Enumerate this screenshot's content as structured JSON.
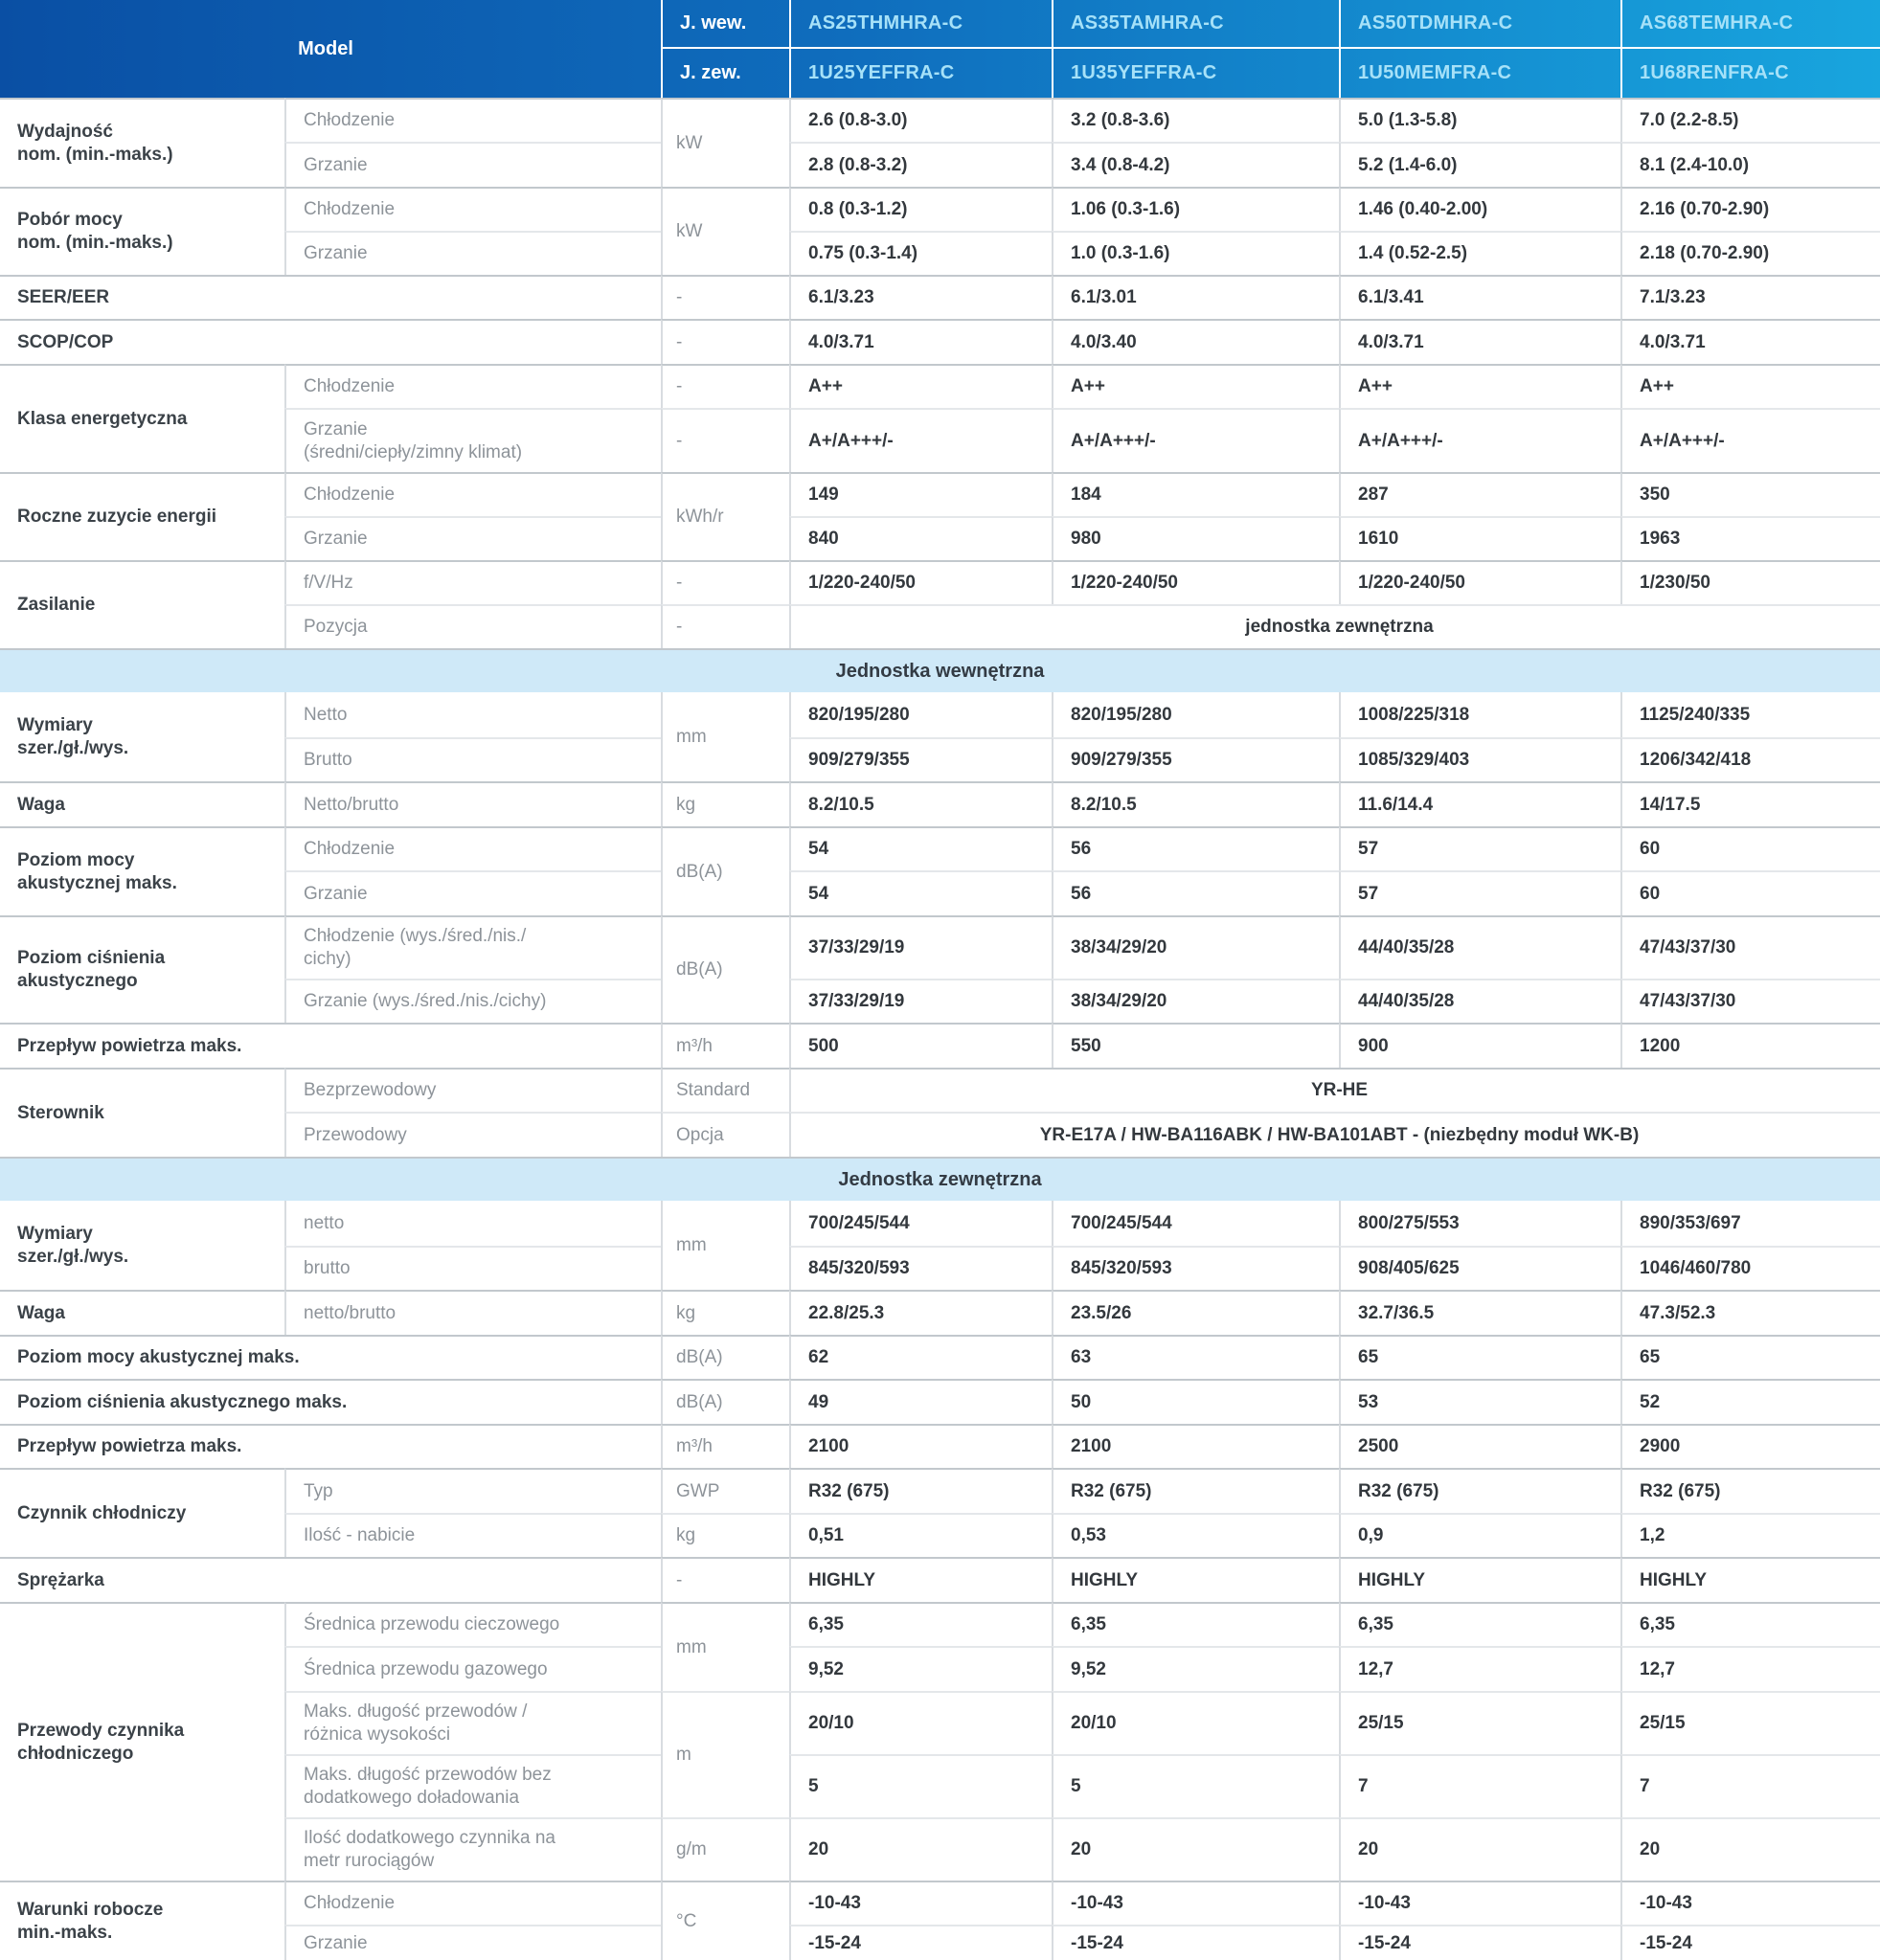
{
  "colors": {
    "header_gradient_start": "#0a4fa4",
    "header_gradient_end": "#18a5de",
    "header_model_text": "#a6e1f8",
    "band_bg": "#cfe9f8"
  },
  "header": {
    "model_label": "Model",
    "row1_label": "J. wew.",
    "row2_label": "J. zew.",
    "row1_models": [
      "AS25THMHRA-C",
      "AS35TAMHRA-C",
      "AS50TDMHRA-C",
      "AS68TEMHRA-C"
    ],
    "row2_models": [
      "1U25YEFFRA-C",
      "1U35YEFFRA-C",
      "1U50MEMFRA-C",
      "1U68RENFRA-C"
    ]
  },
  "bands": {
    "indoor": "Jednostka wewnętrzna",
    "outdoor": "Jednostka zewnętrzna"
  },
  "rows": {
    "wydajnosc": {
      "label": "Wydajność\nnom. (min.-maks.)",
      "sub_cool": "Chłodzenie",
      "sub_heat": "Grzanie",
      "unit": "kW",
      "cool": [
        "2.6 (0.8-3.0)",
        "3.2 (0.8-3.6)",
        "5.0 (1.3-5.8)",
        "7.0 (2.2-8.5)"
      ],
      "heat": [
        "2.8 (0.8-3.2)",
        "3.4 (0.8-4.2)",
        "5.2 (1.4-6.0)",
        "8.1 (2.4-10.0)"
      ]
    },
    "pobor": {
      "label": "Pobór mocy\nnom. (min.-maks.)",
      "sub_cool": "Chłodzenie",
      "sub_heat": "Grzanie",
      "unit": "kW",
      "cool": [
        "0.8 (0.3-1.2)",
        "1.06 (0.3-1.6)",
        "1.46 (0.40-2.00)",
        "2.16 (0.70-2.90)"
      ],
      "heat": [
        "0.75 (0.3-1.4)",
        "1.0 (0.3-1.6)",
        "1.4 (0.52-2.5)",
        "2.18 (0.70-2.90)"
      ]
    },
    "seer": {
      "label": "SEER/EER",
      "unit": "-",
      "values": [
        "6.1/3.23",
        "6.1/3.01",
        "6.1/3.41",
        "7.1/3.23"
      ]
    },
    "scop": {
      "label": "SCOP/COP",
      "unit": "-",
      "values": [
        "4.0/3.71",
        "4.0/3.40",
        "4.0/3.71",
        "4.0/3.71"
      ]
    },
    "klasa": {
      "label": "Klasa energetyczna",
      "sub_cool": "Chłodzenie",
      "sub_heat": "Grzanie\n(średni/ciepły/zimny klimat)",
      "unit_cool": "-",
      "unit_heat": "-",
      "cool": [
        "A++",
        "A++",
        "A++",
        "A++"
      ],
      "heat": [
        "A+/A+++/-",
        "A+/A+++/-",
        "A+/A+++/-",
        "A+/A+++/-"
      ]
    },
    "roczne": {
      "label": "Roczne zuzycie energii",
      "sub_cool": "Chłodzenie",
      "sub_heat": "Grzanie",
      "unit": "kWh/r",
      "cool": [
        "149",
        "184",
        "287",
        "350"
      ],
      "heat": [
        "840",
        "980",
        "1610",
        "1963"
      ]
    },
    "zasilanie": {
      "label": "Zasilanie",
      "sub1": "f/V/Hz",
      "sub2": "Pozycja",
      "unit1": "-",
      "unit2": "-",
      "values1": [
        "1/220-240/50",
        "1/220-240/50",
        "1/220-240/50",
        "1/230/50"
      ],
      "span2": "jednostka zewnętrzna"
    },
    "wymiary_w": {
      "label": "Wymiary\nszer./gł./wys.",
      "sub1": "Netto",
      "sub2": "Brutto",
      "unit": "mm",
      "netto": [
        "820/195/280",
        "820/195/280",
        "1008/225/318",
        "1125/240/335"
      ],
      "brutto": [
        "909/279/355",
        "909/279/355",
        "1085/329/403",
        "1206/342/418"
      ]
    },
    "waga_w": {
      "label": "Waga",
      "sub": "Netto/brutto",
      "unit": "kg",
      "values": [
        "8.2/10.5",
        "8.2/10.5",
        "11.6/14.4",
        "14/17.5"
      ]
    },
    "poziom_mocy_w": {
      "label": "Poziom mocy\nakustycznej maks.",
      "sub_cool": "Chłodzenie",
      "sub_heat": "Grzanie",
      "unit": "dB(A)",
      "cool": [
        "54",
        "56",
        "57",
        "60"
      ],
      "heat": [
        "54",
        "56",
        "57",
        "60"
      ]
    },
    "poziom_cisn_w": {
      "label": "Poziom ciśnienia\nakustycznego",
      "sub_cool": "Chłodzenie (wys./śred./nis./\ncichy)",
      "sub_heat": "Grzanie (wys./śred./nis./cichy)",
      "unit": "dB(A)",
      "cool": [
        "37/33/29/19",
        "38/34/29/20",
        "44/40/35/28",
        "47/43/37/30"
      ],
      "heat": [
        "37/33/29/19",
        "38/34/29/20",
        "44/40/35/28",
        "47/43/37/30"
      ]
    },
    "przeplyw_w": {
      "label": "Przepływ powietrza maks.",
      "unit": "m³/h",
      "values": [
        "500",
        "550",
        "900",
        "1200"
      ]
    },
    "sterownik": {
      "label": "Sterownik",
      "sub1": "Bezprzewodowy",
      "sub2": "Przewodowy",
      "unit1": "Standard",
      "unit2": "Opcja",
      "span1": "YR-HE",
      "span2": "YR-E17A / HW-BA116ABK / HW-BA101ABT - (niezbędny moduł WK-B)"
    },
    "wymiary_z": {
      "label": "Wymiary\nszer./gł./wys.",
      "sub1": "netto",
      "sub2": "brutto",
      "unit": "mm",
      "netto": [
        "700/245/544",
        "700/245/544",
        "800/275/553",
        "890/353/697"
      ],
      "brutto": [
        "845/320/593",
        "845/320/593",
        "908/405/625",
        "1046/460/780"
      ]
    },
    "waga_z": {
      "label": "Waga",
      "sub": "netto/brutto",
      "unit": "kg",
      "values": [
        "22.8/25.3",
        "23.5/26",
        "32.7/36.5",
        "47.3/52.3"
      ]
    },
    "poziom_mocy_z": {
      "label": "Poziom mocy akustycznej maks.",
      "unit": "dB(A)",
      "values": [
        "62",
        "63",
        "65",
        "65"
      ]
    },
    "poziom_cisn_z": {
      "label": "Poziom ciśnienia akustycznego maks.",
      "unit": "dB(A)",
      "values": [
        "49",
        "50",
        "53",
        "52"
      ]
    },
    "przeplyw_z": {
      "label": "Przepływ powietrza maks.",
      "unit": "m³/h",
      "values": [
        "2100",
        "2100",
        "2500",
        "2900"
      ]
    },
    "czynnik": {
      "label": "Czynnik chłodniczy",
      "sub1": "Typ",
      "sub2": "Ilość - nabicie",
      "unit1": "GWP",
      "unit2": "kg",
      "typ": [
        "R32 (675)",
        "R32 (675)",
        "R32 (675)",
        "R32 (675)"
      ],
      "ilosc": [
        "0,51",
        "0,53",
        "0,9",
        "1,2"
      ]
    },
    "sprezarka": {
      "label": "Sprężarka",
      "unit": "-",
      "values": [
        "HIGHLY",
        "HIGHLY",
        "HIGHLY",
        "HIGHLY"
      ]
    },
    "przewody": {
      "label": "Przewody czynnika\nchłodniczego",
      "sub1": "Średnica przewodu cieczowego",
      "sub2": "Średnica przewodu gazowego",
      "sub3": "Maks. długość przewodów /\nróżnica wysokości",
      "sub4": "Maks. długość przewodów bez\ndodatkowego doładowania",
      "sub5": "Ilość dodatkowego czynnika na\nmetr rurociągów",
      "unit12": "mm",
      "unit34": "m",
      "unit5": "g/m",
      "v1": [
        "6,35",
        "6,35",
        "6,35",
        "6,35"
      ],
      "v2": [
        "9,52",
        "9,52",
        "12,7",
        "12,7"
      ],
      "v3": [
        "20/10",
        "20/10",
        "25/15",
        "25/15"
      ],
      "v4": [
        "5",
        "5",
        "7",
        "7"
      ],
      "v5": [
        "20",
        "20",
        "20",
        "20"
      ]
    },
    "warunki": {
      "label": "Warunki robocze\nmin.-maks.",
      "sub_cool": "Chłodzenie",
      "sub_heat": "Grzanie",
      "unit": "°C",
      "cool": [
        "-10-43",
        "-10-43",
        "-10-43",
        "-10-43"
      ],
      "heat": [
        "-15-24",
        "-15-24",
        "-15-24",
        "-15-24"
      ]
    }
  }
}
